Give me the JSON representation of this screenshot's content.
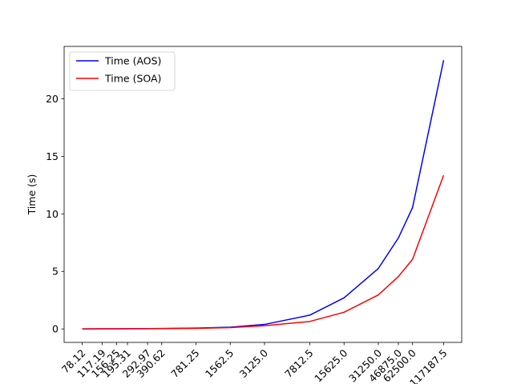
{
  "chart_data": {
    "type": "line",
    "title": "",
    "xlabel": "",
    "ylabel": "Time (s)",
    "x_scale": "log",
    "x": [
      78.12,
      117.19,
      156.25,
      195.31,
      292.97,
      390.62,
      781.25,
      1562.5,
      3125.0,
      7812.5,
      15625.0,
      31250.0,
      46875.0,
      62500.0,
      117187.5
    ],
    "x_tick_labels": [
      "78.12",
      "117.19",
      "156.25",
      "195.31",
      "292.97",
      "390.62",
      "781.25",
      "1562.5",
      "3125.0",
      "7812.5",
      "15625.0",
      "31250.0",
      "46875.0",
      "62500.0",
      "117187.5"
    ],
    "y_ticks": [
      0,
      5,
      10,
      15,
      20
    ],
    "ylim": [
      -1.17,
      24.55
    ],
    "grid": false,
    "legend_position": "top-left",
    "series": [
      {
        "name": "Time (AOS)",
        "color": "#0000ff",
        "values": [
          0.0,
          0.01,
          0.01,
          0.02,
          0.03,
          0.04,
          0.07,
          0.15,
          0.39,
          1.2,
          2.7,
          5.25,
          7.9,
          10.55,
          23.35
        ]
      },
      {
        "name": "Time (SOA)",
        "color": "#ff0000",
        "values": [
          0.0,
          0.01,
          0.01,
          0.01,
          0.02,
          0.03,
          0.05,
          0.12,
          0.28,
          0.65,
          1.45,
          2.95,
          4.55,
          6.05,
          13.35
        ]
      }
    ]
  }
}
